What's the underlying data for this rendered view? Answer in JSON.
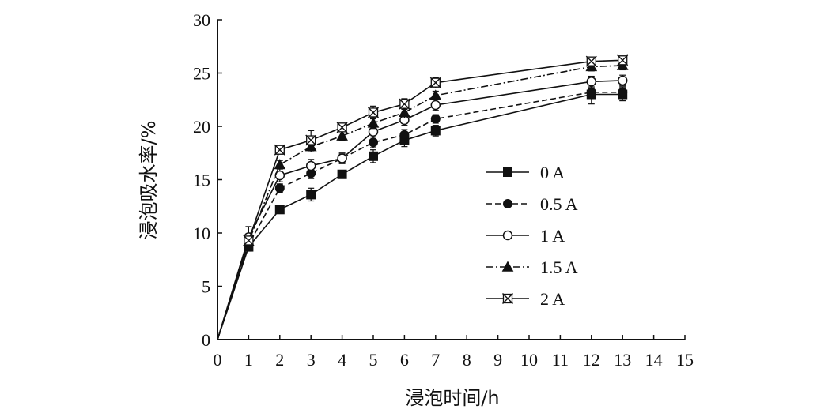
{
  "chart_data": {
    "type": "line",
    "xlabel": "浸泡时间/h",
    "ylabel": "浸泡吸水率/%",
    "xlim": [
      0,
      15
    ],
    "ylim": [
      0,
      30
    ],
    "xticks": [
      "0",
      "1",
      "2",
      "3",
      "4",
      "5",
      "6",
      "7",
      "8",
      "9",
      "10",
      "11",
      "12",
      "13",
      "14",
      "15"
    ],
    "yticks": [
      "0",
      "5",
      "10",
      "15",
      "20",
      "25",
      "30"
    ],
    "x": [
      0,
      1,
      2,
      3,
      4,
      5,
      6,
      7,
      12,
      13
    ],
    "grid": false,
    "legend_position": "right",
    "series": [
      {
        "name": "0 A",
        "marker": "filled-square",
        "dash": "solid",
        "color": "#111111",
        "values": [
          0,
          8.7,
          12.2,
          13.6,
          15.5,
          17.2,
          18.7,
          19.6,
          23.0,
          23.0
        ],
        "errors": [
          0,
          0.4,
          0.3,
          0.6,
          0.3,
          0.6,
          0.6,
          0.5,
          0.9,
          0.6
        ]
      },
      {
        "name": "0.5 A",
        "marker": "filled-circle",
        "dash": "dashed",
        "color": "#111111",
        "values": [
          0,
          8.9,
          14.2,
          15.6,
          17.0,
          18.5,
          19.2,
          20.7,
          23.2,
          23.2
        ],
        "errors": [
          0,
          0.4,
          0.4,
          0.5,
          0.4,
          0.5,
          0.5,
          0.4,
          0.5,
          0.5
        ]
      },
      {
        "name": "1 A",
        "marker": "open-circle",
        "dash": "solid",
        "color": "#111111",
        "values": [
          0,
          9.6,
          15.4,
          16.3,
          17.0,
          19.5,
          20.6,
          22.0,
          24.2,
          24.3
        ],
        "errors": [
          0,
          1.0,
          0.6,
          0.6,
          0.5,
          0.5,
          0.5,
          0.5,
          0.5,
          0.5
        ]
      },
      {
        "name": "1.5 A",
        "marker": "filled-triangle",
        "dash": "dashdot",
        "color": "#111111",
        "values": [
          0,
          9.2,
          16.4,
          18.1,
          19.1,
          20.3,
          21.3,
          22.9,
          25.6,
          25.7
        ],
        "errors": [
          0,
          0.4,
          0.4,
          0.5,
          0.4,
          0.5,
          0.5,
          0.4,
          0.4,
          0.4
        ]
      },
      {
        "name": "2 A",
        "marker": "x-square",
        "dash": "solid",
        "color": "#111111",
        "values": [
          0,
          9.3,
          17.8,
          18.7,
          19.9,
          21.3,
          22.1,
          24.1,
          26.1,
          26.2
        ],
        "errors": [
          0,
          0.4,
          0.4,
          0.9,
          0.4,
          0.6,
          0.5,
          0.5,
          0.4,
          0.4
        ]
      }
    ]
  }
}
